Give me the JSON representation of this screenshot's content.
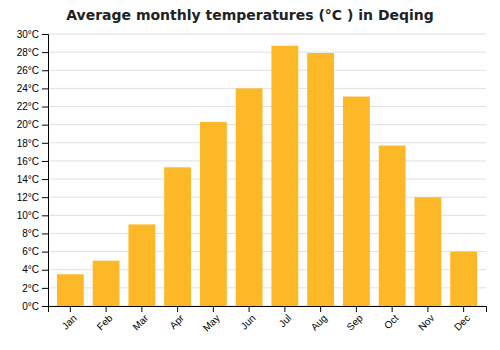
{
  "chart_data": {
    "type": "bar",
    "title": "Average monthly temperatures (°C ) in Deqing",
    "categories": [
      "Jan",
      "Feb",
      "Mar",
      "Apr",
      "May",
      "Jun",
      "Jul",
      "Aug",
      "Sep",
      "Oct",
      "Nov",
      "Dec"
    ],
    "values": [
      3.5,
      5.0,
      9.0,
      15.3,
      20.3,
      24.0,
      28.7,
      27.9,
      23.1,
      17.7,
      12.0,
      6.0
    ],
    "color": "#FDB827",
    "ylim": [
      0,
      30
    ],
    "yticks": [
      {
        "value": 0,
        "label": "0°C"
      },
      {
        "value": 2,
        "label": "2°C"
      },
      {
        "value": 4,
        "label": "4°C"
      },
      {
        "value": 6,
        "label": "6°C"
      },
      {
        "value": 8,
        "label": "8°C"
      },
      {
        "value": 10,
        "label": "10°C"
      },
      {
        "value": 12,
        "label": "12°C"
      },
      {
        "value": 14,
        "label": "14°C"
      },
      {
        "value": 16,
        "label": "16°C"
      },
      {
        "value": 18,
        "label": "18°C"
      },
      {
        "value": 20,
        "label": "20°C"
      },
      {
        "value": 22,
        "label": "22°C"
      },
      {
        "value": 24,
        "label": "24°C"
      },
      {
        "value": 26,
        "label": "26°C"
      },
      {
        "value": 28,
        "label": "28°C"
      },
      {
        "value": 30,
        "label": "30°C"
      }
    ],
    "grid": true
  }
}
